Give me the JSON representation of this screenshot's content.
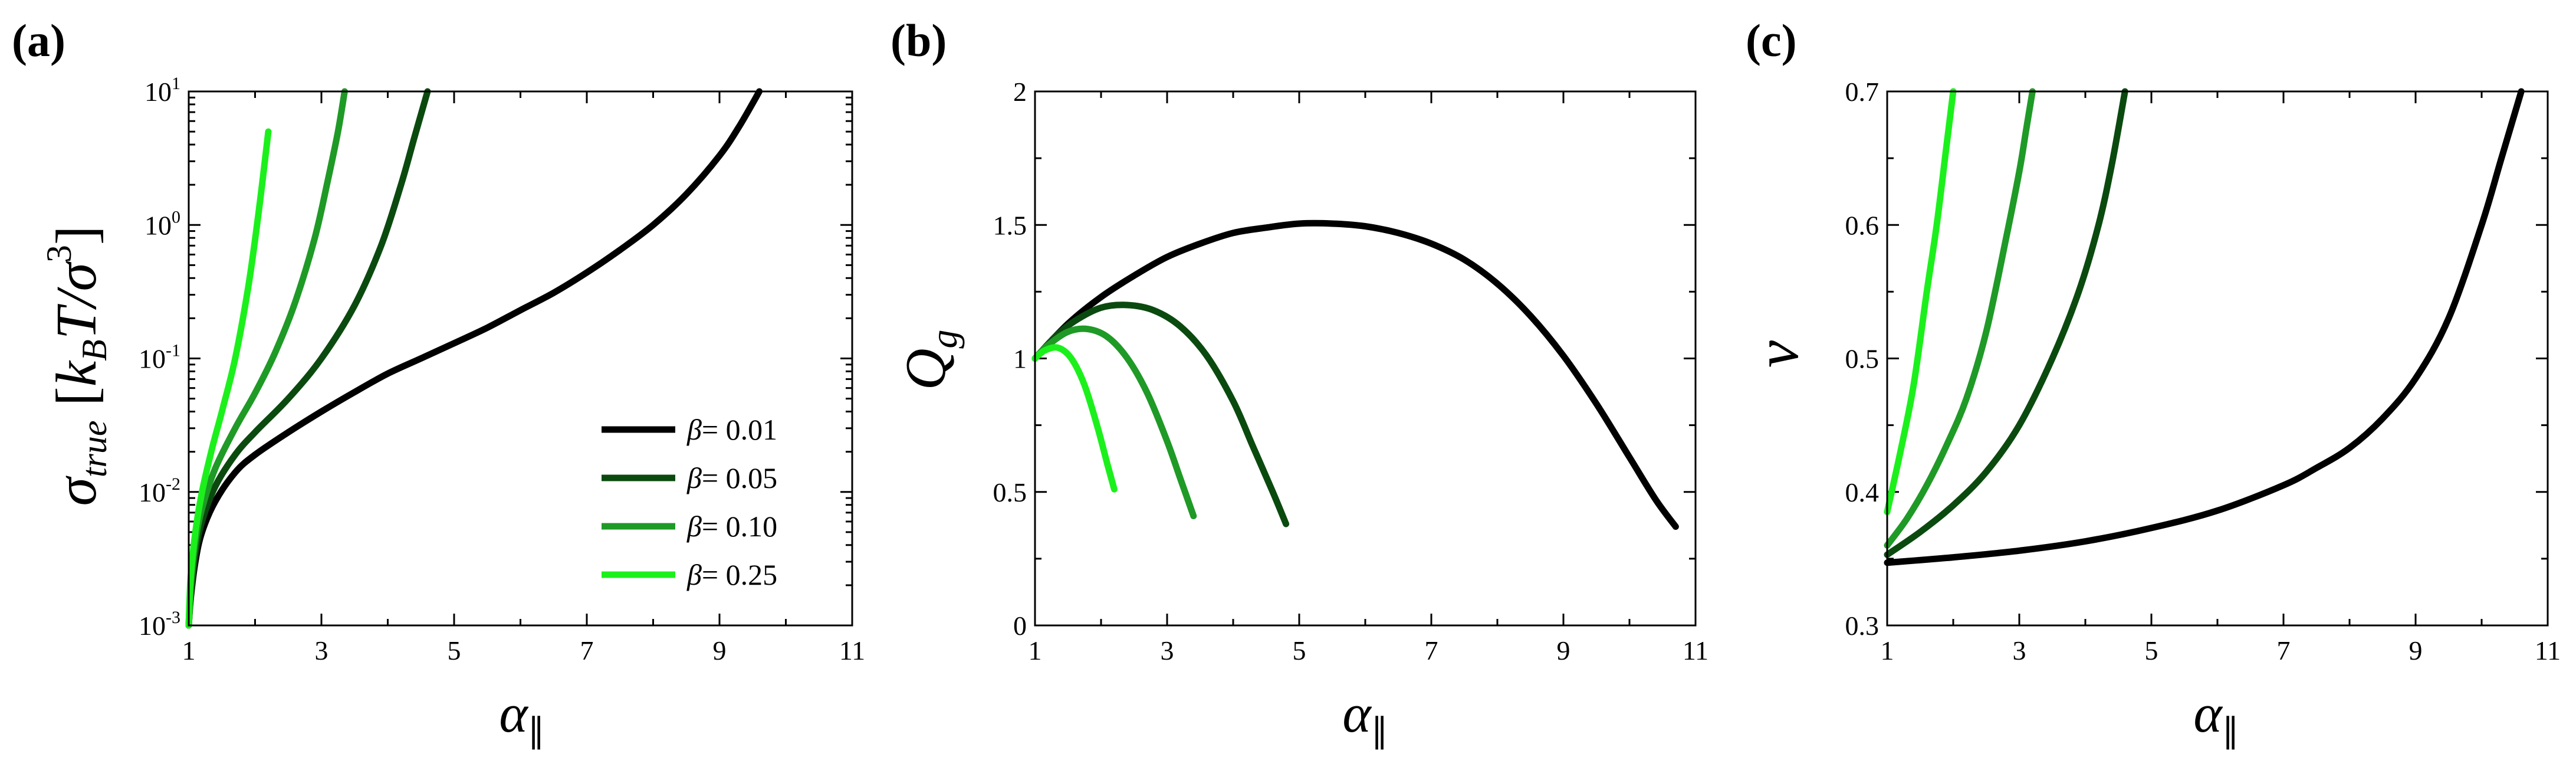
{
  "panels": [
    {
      "letter": "(a)",
      "ylabel": "σtrue [kBT/σ3]",
      "ylabel_parts": {
        "sym": "σ",
        "sub": "true",
        "unit_open": " [",
        "k": "k",
        "k_sub": "B",
        "t": "T/σ",
        "exp": "3",
        "unit_close": "]"
      },
      "xlabel": "α∥",
      "xlabel_parts": {
        "sym": "α",
        "sub": "∥"
      }
    },
    {
      "letter": "(b)",
      "ylabel": "Qg",
      "ylabel_parts": {
        "sym": "Q",
        "sub": "g"
      },
      "xlabel": "α∥",
      "xlabel_parts": {
        "sym": "α",
        "sub": "∥"
      }
    },
    {
      "letter": "(c)",
      "ylabel": "ν",
      "ylabel_parts": {
        "sym": "ν"
      },
      "xlabel": "α∥",
      "xlabel_parts": {
        "sym": "α",
        "sub": "∥"
      }
    }
  ],
  "legend": {
    "placement": "bottom-right of panel (a)",
    "entries": [
      {
        "symbol": "β",
        "text": "= 0.01"
      },
      {
        "symbol": "β",
        "text": "= 0.05"
      },
      {
        "symbol": "β",
        "text": "= 0.10"
      },
      {
        "symbol": "β",
        "text": "= 0.25"
      }
    ]
  },
  "chart_data": [
    {
      "type": "line",
      "panel": "(a)",
      "xlabel": "α∥",
      "ylabel": "σtrue [kBT/σ3]",
      "xlim": [
        1,
        11
      ],
      "ylim": [
        0.001,
        10
      ],
      "yscale": "log",
      "x_ticks": [
        "1",
        "3",
        "5",
        "7",
        "9",
        "11"
      ],
      "y_ticks": [
        {
          "base": "10",
          "exp": "-3",
          "value": 0.001
        },
        {
          "base": "10",
          "exp": "-2",
          "value": 0.01
        },
        {
          "base": "10",
          "exp": "-1",
          "value": 0.1
        },
        {
          "base": "10",
          "exp": "0",
          "value": 1
        },
        {
          "base": "10",
          "exp": "1",
          "value": 10
        }
      ],
      "grid": false,
      "series": [
        {
          "name": "β= 0.01",
          "color": "#000000",
          "x": [
            1.0,
            1.03,
            1.1,
            1.2,
            1.4,
            1.7,
            2.0,
            2.5,
            3.0,
            3.5,
            4.0,
            4.5,
            5.0,
            5.5,
            6.0,
            6.5,
            7.0,
            7.5,
            8.0,
            8.5,
            9.0,
            9.3,
            9.6
          ],
          "y": [
            0.001,
            0.0016,
            0.003,
            0.005,
            0.0085,
            0.014,
            0.019,
            0.028,
            0.04,
            0.056,
            0.077,
            0.1,
            0.13,
            0.17,
            0.23,
            0.31,
            0.44,
            0.65,
            1.0,
            1.7,
            3.3,
            5.5,
            10
          ]
        },
        {
          "name": "β= 0.05",
          "color": "#0b4a0f",
          "x": [
            1.0,
            1.03,
            1.1,
            1.2,
            1.4,
            1.7,
            2.0,
            2.5,
            3.0,
            3.5,
            3.9,
            4.2,
            4.4,
            4.6
          ],
          "y": [
            0.001,
            0.0017,
            0.0035,
            0.006,
            0.011,
            0.019,
            0.028,
            0.05,
            0.1,
            0.25,
            0.7,
            2.0,
            4.5,
            10
          ]
        },
        {
          "name": "β= 0.10",
          "color": "#1f9a26",
          "x": [
            1.0,
            1.03,
            1.1,
            1.2,
            1.4,
            1.7,
            2.0,
            2.3,
            2.6,
            2.9,
            3.1,
            3.25,
            3.35
          ],
          "y": [
            0.001,
            0.002,
            0.0042,
            0.0075,
            0.015,
            0.03,
            0.055,
            0.11,
            0.26,
            0.8,
            2.2,
            5.0,
            10
          ]
        },
        {
          "name": "β= 0.25",
          "color": "#1cf01c",
          "x": [
            1.0,
            1.03,
            1.1,
            1.2,
            1.35,
            1.5,
            1.7,
            1.9,
            2.05,
            2.2
          ],
          "y": [
            0.001,
            0.0023,
            0.005,
            0.01,
            0.021,
            0.04,
            0.1,
            0.35,
            1.2,
            5.0
          ]
        }
      ]
    },
    {
      "type": "line",
      "panel": "(b)",
      "xlabel": "α∥",
      "ylabel": "Qg",
      "xlim": [
        1,
        11
      ],
      "ylim": [
        0,
        2
      ],
      "x_ticks": [
        "1",
        "3",
        "5",
        "7",
        "9",
        "11"
      ],
      "y_ticks": [
        {
          "label": "0",
          "value": 0
        },
        {
          "label": "0.5",
          "value": 0.5
        },
        {
          "label": "1",
          "value": 1
        },
        {
          "label": "1.5",
          "value": 1.5
        },
        {
          "label": "2",
          "value": 2
        }
      ],
      "grid": false,
      "series": [
        {
          "name": "β= 0.01",
          "color": "#000000",
          "x": [
            1.0,
            1.5,
            2.0,
            2.5,
            3.0,
            3.5,
            4.0,
            4.5,
            5.0,
            5.5,
            6.0,
            6.5,
            7.0,
            7.5,
            8.0,
            8.5,
            9.0,
            9.5,
            10.0,
            10.4,
            10.7
          ],
          "y": [
            1.0,
            1.13,
            1.23,
            1.31,
            1.38,
            1.43,
            1.47,
            1.49,
            1.505,
            1.505,
            1.495,
            1.47,
            1.43,
            1.37,
            1.28,
            1.16,
            1.01,
            0.83,
            0.63,
            0.47,
            0.37
          ]
        },
        {
          "name": "β= 0.05",
          "color": "#0b4a0f",
          "x": [
            1.0,
            1.3,
            1.6,
            2.0,
            2.4,
            2.8,
            3.2,
            3.6,
            4.0,
            4.3,
            4.6,
            4.8
          ],
          "y": [
            1.0,
            1.08,
            1.14,
            1.19,
            1.2,
            1.18,
            1.12,
            1.01,
            0.84,
            0.67,
            0.5,
            0.38
          ]
        },
        {
          "name": "β= 0.10",
          "color": "#1f9a26",
          "x": [
            1.0,
            1.2,
            1.5,
            1.8,
            2.1,
            2.4,
            2.7,
            3.0,
            3.2,
            3.4
          ],
          "y": [
            1.0,
            1.05,
            1.1,
            1.11,
            1.08,
            1.0,
            0.87,
            0.69,
            0.55,
            0.41
          ]
        },
        {
          "name": "β= 0.25",
          "color": "#1cf01c",
          "x": [
            1.0,
            1.15,
            1.35,
            1.55,
            1.75,
            1.95,
            2.1,
            2.2
          ],
          "y": [
            1.0,
            1.03,
            1.04,
            1.0,
            0.9,
            0.74,
            0.6,
            0.51
          ]
        }
      ]
    },
    {
      "type": "line",
      "panel": "(c)",
      "xlabel": "α∥",
      "ylabel": "ν",
      "xlim": [
        1,
        11
      ],
      "ylim": [
        0.3,
        0.7
      ],
      "x_ticks": [
        "1",
        "3",
        "5",
        "7",
        "9",
        "11"
      ],
      "y_ticks": [
        {
          "label": "0.3",
          "value": 0.3
        },
        {
          "label": "0.4",
          "value": 0.4
        },
        {
          "label": "0.5",
          "value": 0.5
        },
        {
          "label": "0.6",
          "value": 0.6
        },
        {
          "label": "0.7",
          "value": 0.7
        }
      ],
      "grid": false,
      "series": [
        {
          "name": "β= 0.01",
          "color": "#000000",
          "x": [
            1.0,
            2.0,
            3.0,
            4.0,
            5.0,
            6.0,
            7.0,
            7.5,
            8.0,
            8.5,
            9.0,
            9.5,
            10.0,
            10.3,
            10.6
          ],
          "y": [
            0.347,
            0.351,
            0.356,
            0.363,
            0.373,
            0.386,
            0.405,
            0.418,
            0.433,
            0.455,
            0.485,
            0.53,
            0.6,
            0.65,
            0.7
          ]
        },
        {
          "name": "β= 0.05",
          "color": "#0b4a0f",
          "x": [
            1.0,
            1.5,
            2.0,
            2.5,
            3.0,
            3.5,
            3.9,
            4.2,
            4.4,
            4.6
          ],
          "y": [
            0.353,
            0.37,
            0.39,
            0.415,
            0.45,
            0.5,
            0.55,
            0.6,
            0.645,
            0.7
          ]
        },
        {
          "name": "β= 0.10",
          "color": "#1f9a26",
          "x": [
            1.0,
            1.3,
            1.6,
            1.9,
            2.2,
            2.5,
            2.8,
            3.0,
            3.1,
            3.2
          ],
          "y": [
            0.36,
            0.38,
            0.405,
            0.435,
            0.47,
            0.52,
            0.59,
            0.64,
            0.67,
            0.7
          ]
        },
        {
          "name": "β= 0.25",
          "color": "#1cf01c",
          "x": [
            1.0,
            1.2,
            1.4,
            1.6,
            1.75,
            1.9,
            2.0
          ],
          "y": [
            0.385,
            0.43,
            0.48,
            0.55,
            0.6,
            0.66,
            0.7
          ]
        }
      ]
    }
  ]
}
